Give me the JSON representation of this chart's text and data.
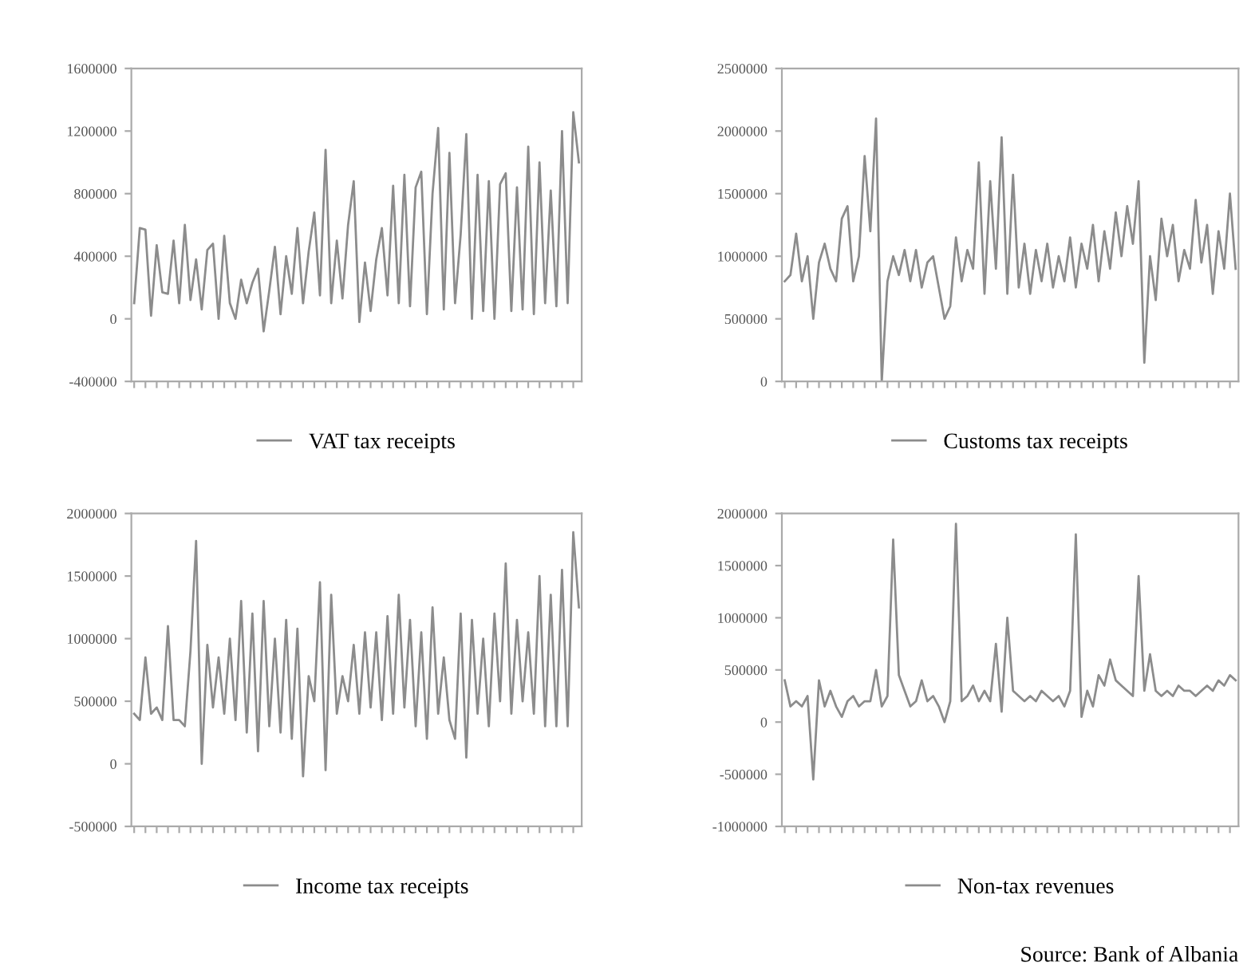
{
  "chart_data": [
    {
      "type": "line",
      "tick_labels": "y",
      "legend": "bottom",
      "grid": false,
      "ylim": [
        -400000,
        1600000
      ],
      "yticks": [
        -400000,
        0,
        400000,
        800000,
        1200000,
        1600000
      ],
      "categories": [
        null,
        null,
        null,
        null,
        null,
        null,
        null,
        null,
        null,
        null,
        null,
        null,
        null,
        null,
        null,
        null,
        null,
        null,
        null,
        null,
        null,
        null,
        null,
        null,
        null,
        null,
        null,
        null,
        null,
        null,
        null,
        null,
        null,
        null,
        null,
        null,
        null,
        null,
        null,
        null,
        null,
        null,
        null,
        null,
        null,
        null,
        null,
        null,
        null,
        null,
        null,
        null,
        null,
        null,
        null,
        null,
        null,
        null,
        null,
        null,
        null,
        null,
        null,
        null,
        null,
        null,
        null,
        null,
        null,
        null,
        null,
        null,
        null,
        null,
        null,
        null,
        null,
        null,
        null,
        null
      ],
      "series": [
        {
          "name": "VAT tax receipts",
          "color": "#8c8c8c",
          "values": [
            100000,
            580000,
            570000,
            20000,
            470000,
            170000,
            160000,
            500000,
            100000,
            600000,
            120000,
            380000,
            60000,
            440000,
            480000,
            0,
            530000,
            100000,
            0,
            250000,
            100000,
            230000,
            320000,
            -80000,
            180000,
            460000,
            30000,
            400000,
            160000,
            580000,
            100000,
            430000,
            680000,
            150000,
            1080000,
            100000,
            500000,
            130000,
            600000,
            880000,
            -20000,
            360000,
            50000,
            380000,
            580000,
            150000,
            850000,
            100000,
            920000,
            80000,
            840000,
            940000,
            30000,
            800000,
            1220000,
            60000,
            1060000,
            100000,
            540000,
            1180000,
            0,
            920000,
            50000,
            880000,
            0,
            860000,
            930000,
            50000,
            840000,
            60000,
            1100000,
            30000,
            1000000,
            100000,
            820000,
            80000,
            1200000,
            100000,
            1320000,
            1000000
          ]
        }
      ]
    },
    {
      "type": "line",
      "tick_labels": "y",
      "legend": "bottom",
      "grid": false,
      "ylim": [
        0,
        2500000
      ],
      "yticks": [
        0,
        500000,
        1000000,
        1500000,
        2000000,
        2500000
      ],
      "categories": [
        null,
        null,
        null,
        null,
        null,
        null,
        null,
        null,
        null,
        null,
        null,
        null,
        null,
        null,
        null,
        null,
        null,
        null,
        null,
        null,
        null,
        null,
        null,
        null,
        null,
        null,
        null,
        null,
        null,
        null,
        null,
        null,
        null,
        null,
        null,
        null,
        null,
        null,
        null,
        null,
        null,
        null,
        null,
        null,
        null,
        null,
        null,
        null,
        null,
        null,
        null,
        null,
        null,
        null,
        null,
        null,
        null,
        null,
        null,
        null,
        null,
        null,
        null,
        null,
        null,
        null,
        null,
        null,
        null,
        null,
        null,
        null,
        null,
        null,
        null,
        null,
        null,
        null,
        null,
        null
      ],
      "series": [
        {
          "name": "Customs tax receipts",
          "color": "#8c8c8c",
          "values": [
            800000,
            850000,
            1180000,
            800000,
            1000000,
            500000,
            950000,
            1100000,
            900000,
            800000,
            1300000,
            1400000,
            800000,
            1000000,
            1800000,
            1200000,
            2100000,
            0,
            800000,
            1000000,
            850000,
            1050000,
            800000,
            1050000,
            750000,
            950000,
            1000000,
            750000,
            500000,
            600000,
            1150000,
            800000,
            1050000,
            900000,
            1750000,
            700000,
            1600000,
            900000,
            1950000,
            700000,
            1650000,
            750000,
            1100000,
            700000,
            1050000,
            800000,
            1100000,
            750000,
            1000000,
            800000,
            1150000,
            750000,
            1100000,
            900000,
            1250000,
            800000,
            1200000,
            900000,
            1350000,
            1000000,
            1400000,
            1100000,
            1600000,
            150000,
            1000000,
            650000,
            1300000,
            1000000,
            1250000,
            800000,
            1050000,
            900000,
            1450000,
            950000,
            1250000,
            700000,
            1200000,
            900000,
            1500000,
            900000
          ]
        }
      ]
    },
    {
      "type": "line",
      "tick_labels": "y",
      "legend": "bottom",
      "grid": false,
      "ylim": [
        -500000,
        2000000
      ],
      "yticks": [
        -500000,
        0,
        500000,
        1000000,
        1500000,
        2000000
      ],
      "categories": [
        null,
        null,
        null,
        null,
        null,
        null,
        null,
        null,
        null,
        null,
        null,
        null,
        null,
        null,
        null,
        null,
        null,
        null,
        null,
        null,
        null,
        null,
        null,
        null,
        null,
        null,
        null,
        null,
        null,
        null,
        null,
        null,
        null,
        null,
        null,
        null,
        null,
        null,
        null,
        null,
        null,
        null,
        null,
        null,
        null,
        null,
        null,
        null,
        null,
        null,
        null,
        null,
        null,
        null,
        null,
        null,
        null,
        null,
        null,
        null,
        null,
        null,
        null,
        null,
        null,
        null,
        null,
        null,
        null,
        null,
        null,
        null,
        null,
        null,
        null,
        null,
        null,
        null,
        null,
        null
      ],
      "series": [
        {
          "name": "Income tax receipts",
          "color": "#8c8c8c",
          "values": [
            400000,
            350000,
            850000,
            400000,
            450000,
            350000,
            1100000,
            350000,
            350000,
            300000,
            900000,
            1780000,
            0,
            950000,
            450000,
            850000,
            400000,
            1000000,
            350000,
            1300000,
            250000,
            1200000,
            100000,
            1300000,
            300000,
            1000000,
            250000,
            1150000,
            200000,
            1080000,
            -100000,
            700000,
            500000,
            1450000,
            -50000,
            1350000,
            400000,
            700000,
            500000,
            950000,
            400000,
            1050000,
            450000,
            1050000,
            350000,
            1180000,
            400000,
            1350000,
            450000,
            1150000,
            300000,
            1050000,
            200000,
            1250000,
            400000,
            850000,
            350000,
            200000,
            1200000,
            50000,
            1150000,
            400000,
            1000000,
            300000,
            1200000,
            500000,
            1600000,
            400000,
            1150000,
            500000,
            1050000,
            400000,
            1500000,
            300000,
            1350000,
            300000,
            1550000,
            300000,
            1850000,
            1250000
          ]
        }
      ]
    },
    {
      "type": "line",
      "tick_labels": "y",
      "legend": "bottom",
      "grid": false,
      "ylim": [
        -1000000,
        2000000
      ],
      "yticks": [
        -1000000,
        -500000,
        0,
        500000,
        1000000,
        1500000,
        2000000
      ],
      "categories": [
        null,
        null,
        null,
        null,
        null,
        null,
        null,
        null,
        null,
        null,
        null,
        null,
        null,
        null,
        null,
        null,
        null,
        null,
        null,
        null,
        null,
        null,
        null,
        null,
        null,
        null,
        null,
        null,
        null,
        null,
        null,
        null,
        null,
        null,
        null,
        null,
        null,
        null,
        null,
        null,
        null,
        null,
        null,
        null,
        null,
        null,
        null,
        null,
        null,
        null,
        null,
        null,
        null,
        null,
        null,
        null,
        null,
        null,
        null,
        null,
        null,
        null,
        null,
        null,
        null,
        null,
        null,
        null,
        null,
        null,
        null,
        null,
        null,
        null,
        null,
        null,
        null,
        null,
        null,
        null
      ],
      "annotations": [
        "Source: Bank of Albania"
      ],
      "series": [
        {
          "name": "Non-tax revenues",
          "color": "#8c8c8c",
          "values": [
            400000,
            150000,
            200000,
            150000,
            250000,
            -550000,
            400000,
            150000,
            300000,
            150000,
            50000,
            200000,
            250000,
            150000,
            200000,
            200000,
            500000,
            150000,
            250000,
            1750000,
            450000,
            300000,
            150000,
            200000,
            400000,
            200000,
            250000,
            150000,
            0,
            200000,
            1900000,
            200000,
            250000,
            350000,
            200000,
            300000,
            200000,
            750000,
            100000,
            1000000,
            300000,
            250000,
            200000,
            250000,
            200000,
            300000,
            250000,
            200000,
            250000,
            150000,
            300000,
            1800000,
            50000,
            300000,
            150000,
            450000,
            350000,
            600000,
            400000,
            350000,
            300000,
            250000,
            1400000,
            300000,
            650000,
            300000,
            250000,
            300000,
            250000,
            350000,
            300000,
            300000,
            250000,
            300000,
            350000,
            300000,
            400000,
            350000,
            450000,
            400000
          ]
        }
      ]
    }
  ]
}
